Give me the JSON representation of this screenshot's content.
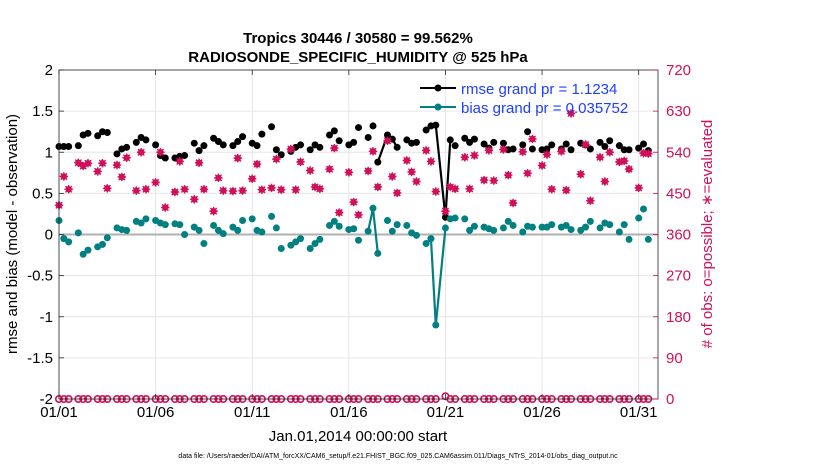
{
  "colors": {
    "rmse": "#000000",
    "bias": "#008080",
    "obs": "#d0105a",
    "zero_line": "#b0b0b0",
    "legend_text": "#1f3fff",
    "grid": "#e6e6e6"
  },
  "chart_data": {
    "type": "line",
    "title_line1": "Tropics 30446 / 30580 = 99.562%",
    "title_line2": "RADIOSONDE_SPECIFIC_HUMIDITY @ 525 hPa",
    "ylabel_left": "rmse and bias (model - observation)",
    "ylabel_right": "# of obs: o=possible; ∗=evaluated",
    "xlabel": "Jan.01,2014 00:00:00 start",
    "footer": "data file: /Users/raeder/DAI/ATM_forcXX/CAM6_setup/f.e21.FHIST_BGC.f09_025.CAM6assim.011/Diags_NTrS_2014-01/obs_diag_output.nc",
    "x_tick_labels": [
      "01/01",
      "01/06",
      "01/11",
      "01/16",
      "01/21",
      "01/26",
      "01/31"
    ],
    "x_tick_days": [
      1,
      6,
      11,
      16,
      21,
      26,
      31
    ],
    "xlim": [
      1,
      32
    ],
    "y_left_ticks": [
      "-2",
      "-1.5",
      "-1",
      "-0.5",
      "0",
      "0.5",
      "1",
      "1.5",
      "2"
    ],
    "y_left_values": [
      -2,
      -1.5,
      -1,
      -0.5,
      0,
      0.5,
      1,
      1.5,
      2
    ],
    "ylim_left": [
      -2,
      2
    ],
    "y_right_ticks": [
      "0",
      "90",
      "180",
      "270",
      "360",
      "450",
      "540",
      "630",
      "720"
    ],
    "y_right_values": [
      0,
      90,
      180,
      270,
      360,
      450,
      540,
      630,
      720
    ],
    "ylim_right": [
      0,
      720
    ],
    "legend": [
      {
        "name": "rmse grand pr = 1.1234",
        "color": "#000000"
      },
      {
        "name": "bias grand pr = 0.035752",
        "color": "#008080"
      }
    ],
    "series": [
      {
        "name": "rmse",
        "axis": "left",
        "x": [
          1.0,
          1.25,
          1.5,
          2.0,
          2.25,
          2.5,
          3.0,
          3.25,
          3.5,
          4.0,
          4.25,
          4.5,
          5.0,
          5.25,
          5.5,
          6.0,
          6.25,
          6.5,
          7.0,
          7.25,
          7.5,
          8.0,
          8.25,
          8.5,
          9.0,
          9.25,
          9.5,
          10.0,
          10.25,
          10.5,
          11.0,
          11.25,
          11.5,
          12.0,
          12.25,
          12.5,
          13.0,
          13.25,
          13.5,
          14.0,
          14.25,
          14.5,
          15.0,
          15.25,
          15.5,
          16.0,
          16.25,
          16.5,
          17.0,
          17.25,
          17.5,
          18.0,
          18.25,
          18.5,
          19.0,
          19.25,
          19.5,
          20.0,
          20.25,
          20.5,
          21.0,
          21.25,
          21.5,
          22.0,
          22.25,
          22.5,
          23.0,
          23.25,
          23.5,
          24.0,
          24.25,
          24.5,
          25.0,
          25.25,
          25.5,
          26.0,
          26.25,
          26.5,
          27.0,
          27.25,
          27.5,
          28.0,
          28.25,
          28.5,
          29.0,
          29.25,
          29.5,
          30.0,
          30.25,
          30.5,
          31.0,
          31.25,
          31.5
        ],
        "y": [
          1.07,
          1.07,
          1.07,
          1.08,
          1.21,
          1.23,
          1.2,
          1.25,
          1.24,
          0.98,
          1.04,
          1.06,
          1.12,
          1.18,
          1.15,
          1.09,
          0.96,
          0.93,
          0.93,
          0.95,
          0.96,
          1.11,
          1.02,
          1.08,
          1.17,
          1.13,
          1.09,
          1.08,
          1.13,
          1.19,
          1.11,
          1.08,
          1.22,
          1.31,
          1.03,
          0.97,
          1.01,
          1.06,
          1.09,
          1.03,
          1.09,
          1.06,
          1.21,
          1.26,
          1.14,
          1.09,
          1.12,
          1.3,
          1.18,
          1.32,
          0.88,
          1.21,
          1.16,
          1.06,
          1.15,
          1.11,
          1.12,
          1.27,
          1.32,
          1.33,
          0.21,
          1.15,
          1.08,
          1.17,
          1.12,
          1.16,
          1.1,
          1.05,
          1.12,
          1.11,
          1.03,
          1.04,
          1.09,
          1.25,
          1.04,
          1.03,
          1.04,
          1.09,
          1.04,
          1.1,
          1.03,
          1.11,
          1.09,
          1.04,
          1.12,
          1.07,
          1.14,
          1.08,
          1.03,
          1.03,
          1.05,
          1.1,
          1.02
        ],
        "connected_points": [
          50,
          51,
          52,
          53,
          59,
          60,
          61
        ]
      },
      {
        "name": "bias",
        "axis": "left",
        "x": [
          1.0,
          1.25,
          1.5,
          2.0,
          2.25,
          2.5,
          3.0,
          3.25,
          3.5,
          4.0,
          4.25,
          4.5,
          5.0,
          5.25,
          5.5,
          6.0,
          6.25,
          6.5,
          7.0,
          7.25,
          7.5,
          8.0,
          8.25,
          8.5,
          9.0,
          9.25,
          9.5,
          10.0,
          10.25,
          10.5,
          11.0,
          11.25,
          11.5,
          12.0,
          12.25,
          12.5,
          13.0,
          13.25,
          13.5,
          14.0,
          14.25,
          14.5,
          15.0,
          15.25,
          15.5,
          16.0,
          16.25,
          16.5,
          17.0,
          17.25,
          17.5,
          18.0,
          18.25,
          18.5,
          19.0,
          19.25,
          19.5,
          20.0,
          20.25,
          20.5,
          21.0,
          21.25,
          21.5,
          22.0,
          22.25,
          22.5,
          23.0,
          23.25,
          23.5,
          24.0,
          24.25,
          24.5,
          25.0,
          25.25,
          25.5,
          26.0,
          26.25,
          26.5,
          27.0,
          27.25,
          27.5,
          28.0,
          28.25,
          28.5,
          29.0,
          29.25,
          29.5,
          30.0,
          30.25,
          30.5,
          31.0,
          31.25,
          31.5
        ],
        "y": [
          0.17,
          -0.05,
          -0.09,
          0.02,
          -0.24,
          -0.19,
          -0.15,
          -0.12,
          -0.04,
          0.08,
          0.06,
          0.05,
          0.16,
          0.14,
          0.19,
          0.17,
          0.14,
          0.12,
          0.13,
          0.12,
          0.0,
          0.09,
          0.05,
          -0.11,
          0.11,
          0.05,
          0.01,
          0.09,
          0.05,
          0.17,
          0.19,
          0.05,
          0.03,
          0.22,
          0.08,
          -0.17,
          -0.13,
          -0.09,
          -0.05,
          -0.17,
          -0.11,
          -0.06,
          0.11,
          0.16,
          0.1,
          0.06,
          0.07,
          -0.07,
          0.04,
          0.32,
          -0.23,
          0.17,
          0.04,
          0.12,
          0.11,
          0.02,
          -0.01,
          -0.11,
          -0.05,
          -1.1,
          0.08,
          0.19,
          0.2,
          0.19,
          0.05,
          0.1,
          0.09,
          0.07,
          0.05,
          0.08,
          0.16,
          0.11,
          0.03,
          0.1,
          0.09,
          0.09,
          0.09,
          0.12,
          0.09,
          0.11,
          0.06,
          0.05,
          0.09,
          0.16,
          0.08,
          0.14,
          0.12,
          0.03,
          0.12,
          -0.06,
          0.2,
          0.31,
          -0.06
        ],
        "connected_points": [
          48,
          49,
          50,
          57,
          58,
          59,
          60
        ]
      },
      {
        "name": "obs evaluated",
        "axis": "right",
        "x": [
          1.0,
          1.25,
          1.5,
          2.0,
          2.25,
          2.5,
          3.0,
          3.25,
          3.5,
          4.0,
          4.25,
          4.5,
          5.0,
          5.25,
          5.5,
          6.0,
          6.25,
          6.5,
          7.0,
          7.25,
          7.5,
          8.0,
          8.25,
          8.5,
          9.0,
          9.25,
          9.5,
          10.0,
          10.25,
          10.5,
          11.0,
          11.25,
          11.5,
          12.0,
          12.25,
          12.5,
          13.0,
          13.25,
          13.5,
          14.0,
          14.25,
          14.5,
          15.0,
          15.25,
          15.5,
          16.0,
          16.25,
          16.5,
          17.0,
          17.25,
          17.5,
          18.0,
          18.25,
          18.5,
          19.0,
          19.25,
          19.5,
          20.0,
          20.25,
          20.5,
          21.0,
          21.25,
          21.5,
          22.0,
          22.25,
          22.5,
          23.0,
          23.25,
          23.5,
          24.0,
          24.25,
          24.5,
          25.0,
          25.25,
          25.5,
          26.0,
          26.25,
          26.5,
          27.0,
          27.25,
          27.5,
          28.0,
          28.25,
          28.5,
          29.0,
          29.25,
          29.5,
          30.0,
          30.25,
          30.5,
          31.0,
          31.25,
          31.5
        ],
        "y": [
          424,
          487,
          459,
          517,
          510,
          516,
          498,
          516,
          461,
          512,
          486,
          528,
          456,
          540,
          459,
          474,
          540,
          419,
          453,
          520,
          459,
          437,
          517,
          459,
          411,
          484,
          456,
          455,
          527,
          456,
          482,
          514,
          458,
          462,
          525,
          458,
          547,
          458,
          519,
          500,
          464,
          460,
          503,
          549,
          408,
          496,
          431,
          403,
          499,
          542,
          464,
          565,
          487,
          451,
          522,
          497,
          476,
          544,
          520,
          454,
          411,
          464,
          460,
          529,
          460,
          533,
          479,
          544,
          478,
          546,
          490,
          429,
          541,
          494,
          569,
          511,
          535,
          459,
          542,
          457,
          625,
          492,
          557,
          434,
          529,
          476,
          540,
          519,
          521,
          503,
          462,
          538,
          537
        ]
      },
      {
        "name": "obs possible",
        "axis": "right",
        "x": [
          1.0,
          1.25,
          1.5,
          2.0,
          2.25,
          2.5,
          3.0,
          3.25,
          3.5,
          4.0,
          4.25,
          4.5,
          5.0,
          5.25,
          5.5,
          6.0,
          6.25,
          6.5,
          7.0,
          7.25,
          7.5,
          8.0,
          8.25,
          8.5,
          9.0,
          9.25,
          9.5,
          10.0,
          10.25,
          10.5,
          11.0,
          11.25,
          11.5,
          12.0,
          12.25,
          12.5,
          13.0,
          13.25,
          13.5,
          14.0,
          14.25,
          14.5,
          15.0,
          15.25,
          15.5,
          16.0,
          16.25,
          16.5,
          17.0,
          17.25,
          17.5,
          18.0,
          18.25,
          18.5,
          19.0,
          19.25,
          19.5,
          20.0,
          20.25,
          20.5,
          21.0,
          21.25,
          21.5,
          22.0,
          22.25,
          22.5,
          23.0,
          23.25,
          23.5,
          24.0,
          24.25,
          24.5,
          25.0,
          25.25,
          25.5,
          26.0,
          26.25,
          26.5,
          27.0,
          27.25,
          27.5,
          28.0,
          28.25,
          28.5,
          29.0,
          29.25,
          29.5,
          30.0,
          30.25,
          30.5,
          31.0,
          31.25,
          31.5
        ],
        "y": [
          0,
          0,
          0,
          0,
          0,
          0,
          0,
          0,
          0,
          0,
          0,
          0,
          0,
          0,
          0,
          0,
          0,
          0,
          0,
          0,
          0,
          0,
          0,
          0,
          0,
          0,
          0,
          0,
          0,
          0,
          0,
          0,
          0,
          0,
          0,
          0,
          0,
          0,
          0,
          0,
          0,
          0,
          0,
          0,
          0,
          0,
          0,
          0,
          0,
          0,
          0,
          0,
          0,
          0,
          0,
          0,
          0,
          0,
          0,
          0,
          6,
          0,
          0,
          0,
          0,
          0,
          0,
          0,
          0,
          0,
          0,
          0,
          0,
          0,
          0,
          0,
          0,
          0,
          0,
          0,
          0,
          0,
          0,
          0,
          0,
          0,
          0,
          0,
          0,
          0,
          0,
          0,
          0
        ]
      }
    ]
  }
}
